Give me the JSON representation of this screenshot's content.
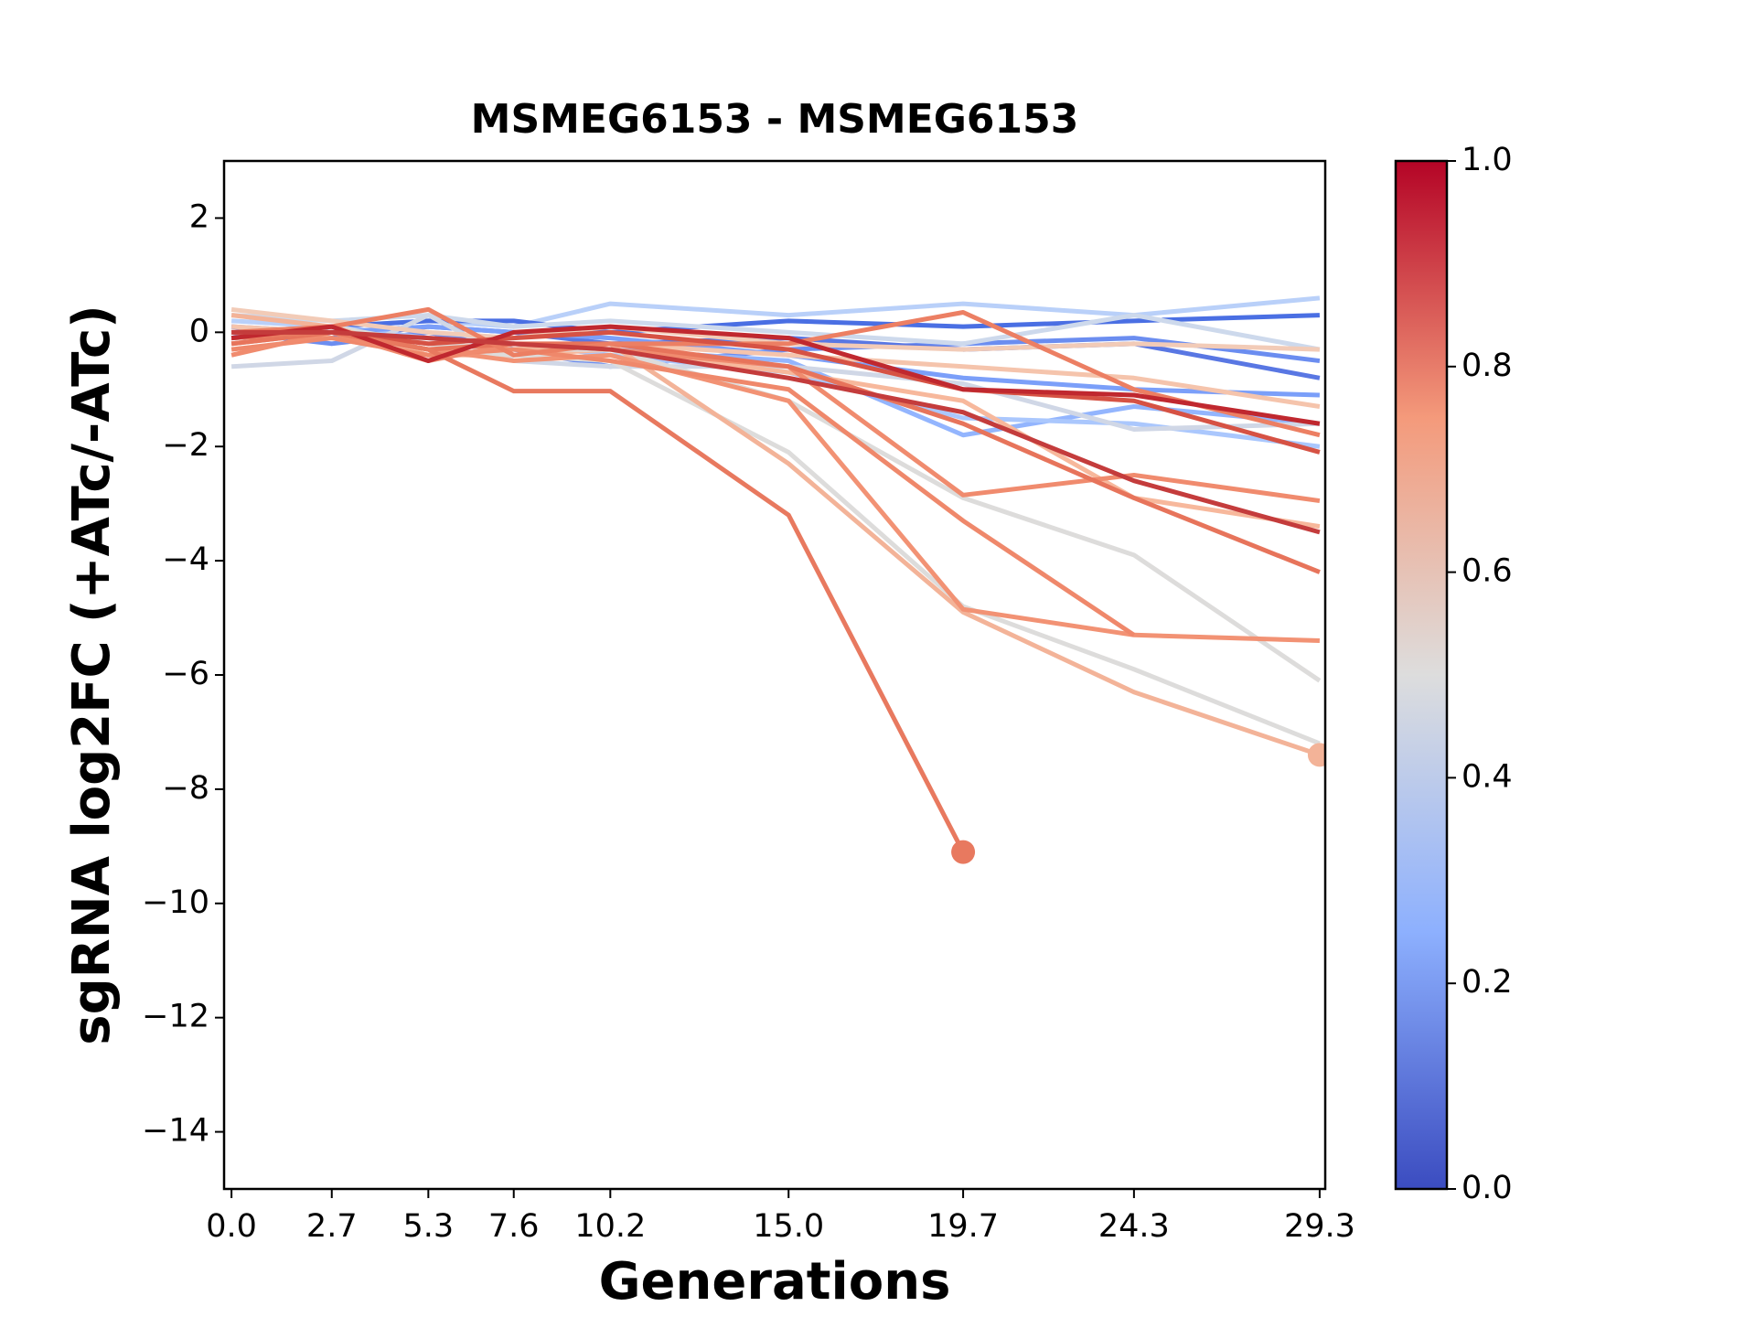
{
  "chart_data": {
    "type": "line",
    "title": "MSMEG6153 - MSMEG6153",
    "xlabel": "Generations",
    "ylabel": "sgRNA log2FC (+ATc/-ATc)",
    "x": [
      0,
      2.7,
      5.3,
      7.6,
      10.2,
      15,
      19.7,
      24.3,
      29.3
    ],
    "xlim": [
      -0.2,
      29.45
    ],
    "xticks": [
      {
        "value": 0,
        "label": "0.0"
      },
      2.7,
      5.3,
      7.6,
      10.2,
      {
        "value": 15,
        "label": "15.0"
      },
      19.7,
      24.3,
      29.3
    ],
    "ylim": [
      -15,
      3
    ],
    "yticks": [
      {
        "value": -14,
        "label": "−14"
      },
      {
        "value": -12,
        "label": "−12"
      },
      {
        "value": -10,
        "label": "−10"
      },
      {
        "value": -8,
        "label": "−8"
      },
      {
        "value": -6,
        "label": "−6"
      },
      {
        "value": -4,
        "label": "−4"
      },
      {
        "value": -2,
        "label": "−2"
      },
      0,
      2
    ],
    "colorbar": {
      "lim": [
        0,
        1
      ],
      "ticks": [
        {
          "value": 0,
          "label": "0.0"
        },
        0.2,
        0.4,
        0.6,
        0.8,
        {
          "value": 1,
          "label": "1.0"
        }
      ]
    },
    "series": [
      {
        "color": "#b9d0f9",
        "values": [
          0.2,
          0.1,
          0.2,
          0.1,
          0.5,
          0.3,
          0.5,
          0.3,
          0.6
        ]
      },
      {
        "color": "#4a6fe3",
        "values": [
          -0.1,
          0.1,
          0.2,
          0.2,
          0.0,
          0.2,
          0.1,
          0.2,
          0.3
        ]
      },
      {
        "color": "#6b8df0",
        "values": [
          0.0,
          -0.2,
          0.0,
          -0.3,
          -0.6,
          -0.3,
          -0.2,
          -0.1,
          -0.5
        ]
      },
      {
        "color": "#5977e3",
        "values": [
          0.1,
          -0.1,
          0.1,
          0.0,
          -0.2,
          -0.1,
          -0.3,
          -0.2,
          -0.8
        ]
      },
      {
        "color": "#93b5fe",
        "values": [
          -0.1,
          0.0,
          -0.2,
          -0.3,
          -0.3,
          -0.5,
          -1.8,
          -1.3,
          -1.6
        ]
      },
      {
        "color": "#aac7fd",
        "values": [
          0.0,
          0.1,
          -0.1,
          -0.2,
          -0.4,
          -0.7,
          -1.5,
          -1.6,
          -2.0
        ]
      },
      {
        "color": "#7b9ff9",
        "values": [
          0.1,
          0.0,
          0.1,
          0.0,
          -0.1,
          -0.4,
          -0.8,
          -1.0,
          -1.1
        ]
      },
      {
        "color": "#cdd9ec",
        "values": [
          0.3,
          0.2,
          0.3,
          0.1,
          0.2,
          0.0,
          -0.2,
          0.3,
          -0.3
        ]
      },
      {
        "color": "#d0d7e6",
        "values": [
          -0.6,
          -0.5,
          0.3,
          -0.5,
          -0.6,
          -0.6,
          -0.9,
          -1.7,
          -1.6
        ]
      },
      {
        "color": "#f5c4ac",
        "values": [
          0.1,
          0.0,
          -0.2,
          -0.3,
          -0.2,
          -0.4,
          -0.6,
          -0.8,
          -1.3
        ]
      },
      {
        "color": "#f2cbb7",
        "values": [
          0.4,
          0.2,
          0.0,
          -0.1,
          0.1,
          -0.2,
          -0.3,
          -0.2,
          -0.3
        ]
      },
      {
        "color": "#f7b89c",
        "values": [
          0.0,
          -0.1,
          -0.4,
          -0.4,
          -0.3,
          -0.7,
          -1.2,
          -2.9,
          -3.4
        ]
      },
      {
        "color": "#dddcdb",
        "values": [
          -0.2,
          0.0,
          -0.3,
          -0.4,
          -0.5,
          -2.1,
          -4.8,
          -5.9,
          -7.2
        ]
      },
      {
        "color": "#dddcdb",
        "values": [
          0.0,
          0.1,
          -0.2,
          -0.3,
          -0.3,
          -1.2,
          -2.9,
          -3.9,
          -6.1
        ]
      },
      {
        "color": "#f3b398",
        "values": [
          0.3,
          0.1,
          -0.4,
          -0.3,
          -0.2,
          -2.3,
          -4.9,
          -6.3,
          -7.4
        ],
        "end_marker": true
      },
      {
        "color": "#f29274",
        "values": [
          -0.2,
          0.0,
          -0.3,
          -0.5,
          -0.4,
          -1.2,
          -4.85,
          -5.3,
          -5.4
        ]
      },
      {
        "color": "#ef886b",
        "values": [
          -0.3,
          -0.1,
          -0.4,
          -0.3,
          -0.5,
          -1.0,
          -3.3,
          -5.3,
          null
        ]
      },
      {
        "color": "#f08b6e",
        "values": [
          -0.4,
          0.0,
          -0.5,
          -0.2,
          -0.3,
          -0.6,
          -2.85,
          -2.5,
          -2.95
        ]
      },
      {
        "color": "#e7745b",
        "values": [
          -0.2,
          0.0,
          -0.3,
          -0.2,
          -0.2,
          -0.6,
          -1.6,
          -2.9,
          -4.2
        ]
      },
      {
        "color": "#ec7f63",
        "values": [
          0.0,
          0.1,
          0.4,
          -0.4,
          -0.2,
          -0.2,
          0.35,
          -1.0,
          -1.8
        ]
      },
      {
        "color": "#d65244",
        "values": [
          -0.1,
          0.0,
          -0.2,
          -0.1,
          0.0,
          -0.3,
          -1.0,
          -1.2,
          -2.1
        ]
      },
      {
        "color": "#e8795f",
        "values": [
          -0.1,
          0.0,
          -0.3,
          -1.03,
          -1.03,
          -3.2,
          -9.1,
          null,
          null
        ],
        "end_marker": true
      },
      {
        "color": "#c0282f",
        "values": [
          -0.1,
          0.1,
          -0.5,
          0.0,
          0.1,
          -0.1,
          -1.0,
          -1.1,
          -1.6
        ]
      },
      {
        "color": "#c43c3c",
        "values": [
          0.0,
          0.0,
          -0.1,
          -0.2,
          -0.3,
          -0.8,
          -1.4,
          -2.6,
          -3.5
        ]
      }
    ]
  }
}
